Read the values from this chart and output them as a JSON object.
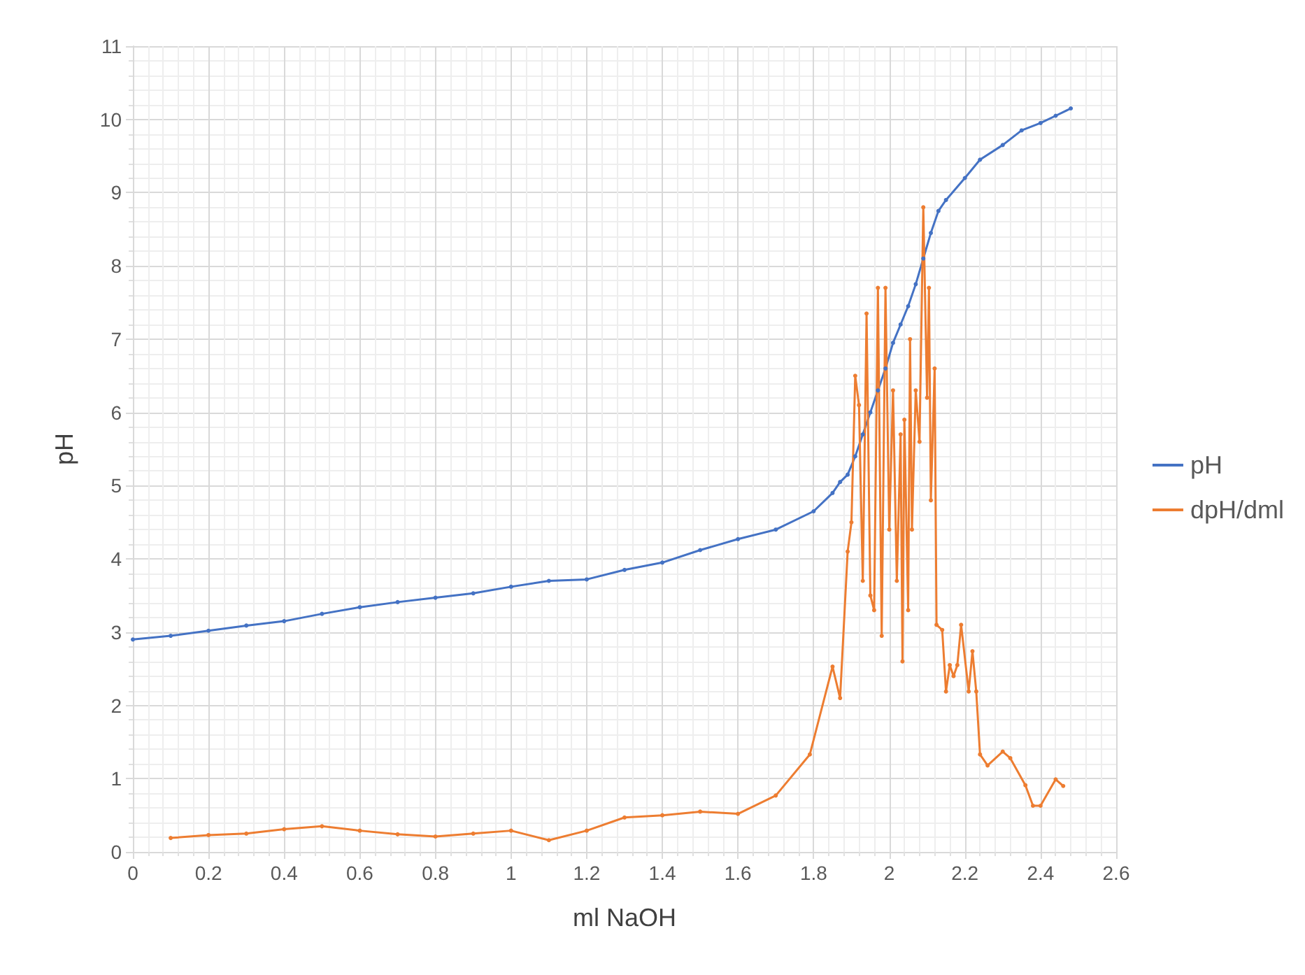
{
  "chart_data": {
    "type": "line",
    "xlabel": "ml NaOH",
    "ylabel": "pH",
    "xlim": [
      0,
      2.6
    ],
    "xticks": [
      0,
      0.2,
      0.4,
      0.6,
      0.8,
      1,
      1.2,
      1.4,
      1.6,
      1.8,
      2,
      2.2,
      2.4,
      2.6
    ],
    "ylim": [
      0,
      11
    ],
    "yticks": [
      0,
      1,
      2,
      3,
      4,
      5,
      6,
      7,
      8,
      9,
      10,
      11
    ],
    "grid": true,
    "legend": "right",
    "marker": "circle",
    "line_style": "solid",
    "series": [
      {
        "name": "pH",
        "color": "#4472c4",
        "x": [
          0,
          0.1,
          0.2,
          0.3,
          0.4,
          0.5,
          0.6,
          0.7,
          0.8,
          0.9,
          1,
          1.1,
          1.2,
          1.3,
          1.4,
          1.5,
          1.6,
          1.7,
          1.8,
          1.85,
          1.87,
          1.89,
          1.91,
          1.93,
          1.95,
          1.97,
          1.99,
          2.01,
          2.03,
          2.05,
          2.07,
          2.09,
          2.11,
          2.13,
          2.15,
          2.2,
          2.24,
          2.3,
          2.35,
          2.4,
          2.44,
          2.48
        ],
        "values": [
          2.9,
          2.95,
          3.02,
          3.09,
          3.15,
          3.25,
          3.34,
          3.41,
          3.47,
          3.53,
          3.62,
          3.7,
          3.72,
          3.85,
          3.95,
          4.12,
          4.27,
          4.4,
          4.65,
          4.9,
          5.05,
          5.15,
          5.4,
          5.7,
          6.0,
          6.3,
          6.6,
          6.95,
          7.2,
          7.45,
          7.75,
          8.1,
          8.45,
          8.75,
          8.9,
          9.2,
          9.45,
          9.65,
          9.85,
          9.95,
          10.05,
          10.15
        ]
      },
      {
        "name": "dpH/dml",
        "color": "#ed7d31",
        "x": [
          0.1,
          0.2,
          0.3,
          0.4,
          0.5,
          0.6,
          0.7,
          0.8,
          0.9,
          1,
          1.1,
          1.2,
          1.3,
          1.4,
          1.5,
          1.6,
          1.7,
          1.79,
          1.85,
          1.87,
          1.89,
          1.9,
          1.91,
          1.92,
          1.93,
          1.94,
          1.95,
          1.96,
          1.97,
          1.98,
          1.99,
          2,
          2.01,
          2.02,
          2.03,
          2.035,
          2.04,
          2.05,
          2.055,
          2.06,
          2.07,
          2.08,
          2.09,
          2.1,
          2.105,
          2.11,
          2.12,
          2.125,
          2.14,
          2.15,
          2.16,
          2.17,
          2.18,
          2.19,
          2.21,
          2.22,
          2.23,
          2.24,
          2.26,
          2.3,
          2.32,
          2.36,
          2.38,
          2.4,
          2.44,
          2.46
        ],
        "values": [
          0.19,
          0.23,
          0.25,
          0.31,
          0.35,
          0.29,
          0.24,
          0.21,
          0.25,
          0.29,
          0.16,
          0.29,
          0.47,
          0.5,
          0.55,
          0.52,
          0.77,
          1.33,
          2.53,
          2.1,
          4.1,
          4.5,
          6.5,
          6.1,
          3.7,
          7.35,
          3.5,
          3.3,
          7.7,
          2.95,
          7.7,
          4.4,
          6.3,
          3.7,
          5.7,
          2.6,
          5.9,
          3.3,
          7.0,
          4.4,
          6.3,
          5.6,
          8.8,
          6.2,
          7.7,
          4.8,
          6.6,
          3.1,
          3.03,
          2.19,
          2.55,
          2.4,
          2.55,
          3.1,
          2.19,
          2.74,
          2.19,
          1.33,
          1.18,
          1.37,
          1.28,
          0.91,
          0.63,
          0.63,
          0.99,
          0.9
        ]
      }
    ]
  }
}
